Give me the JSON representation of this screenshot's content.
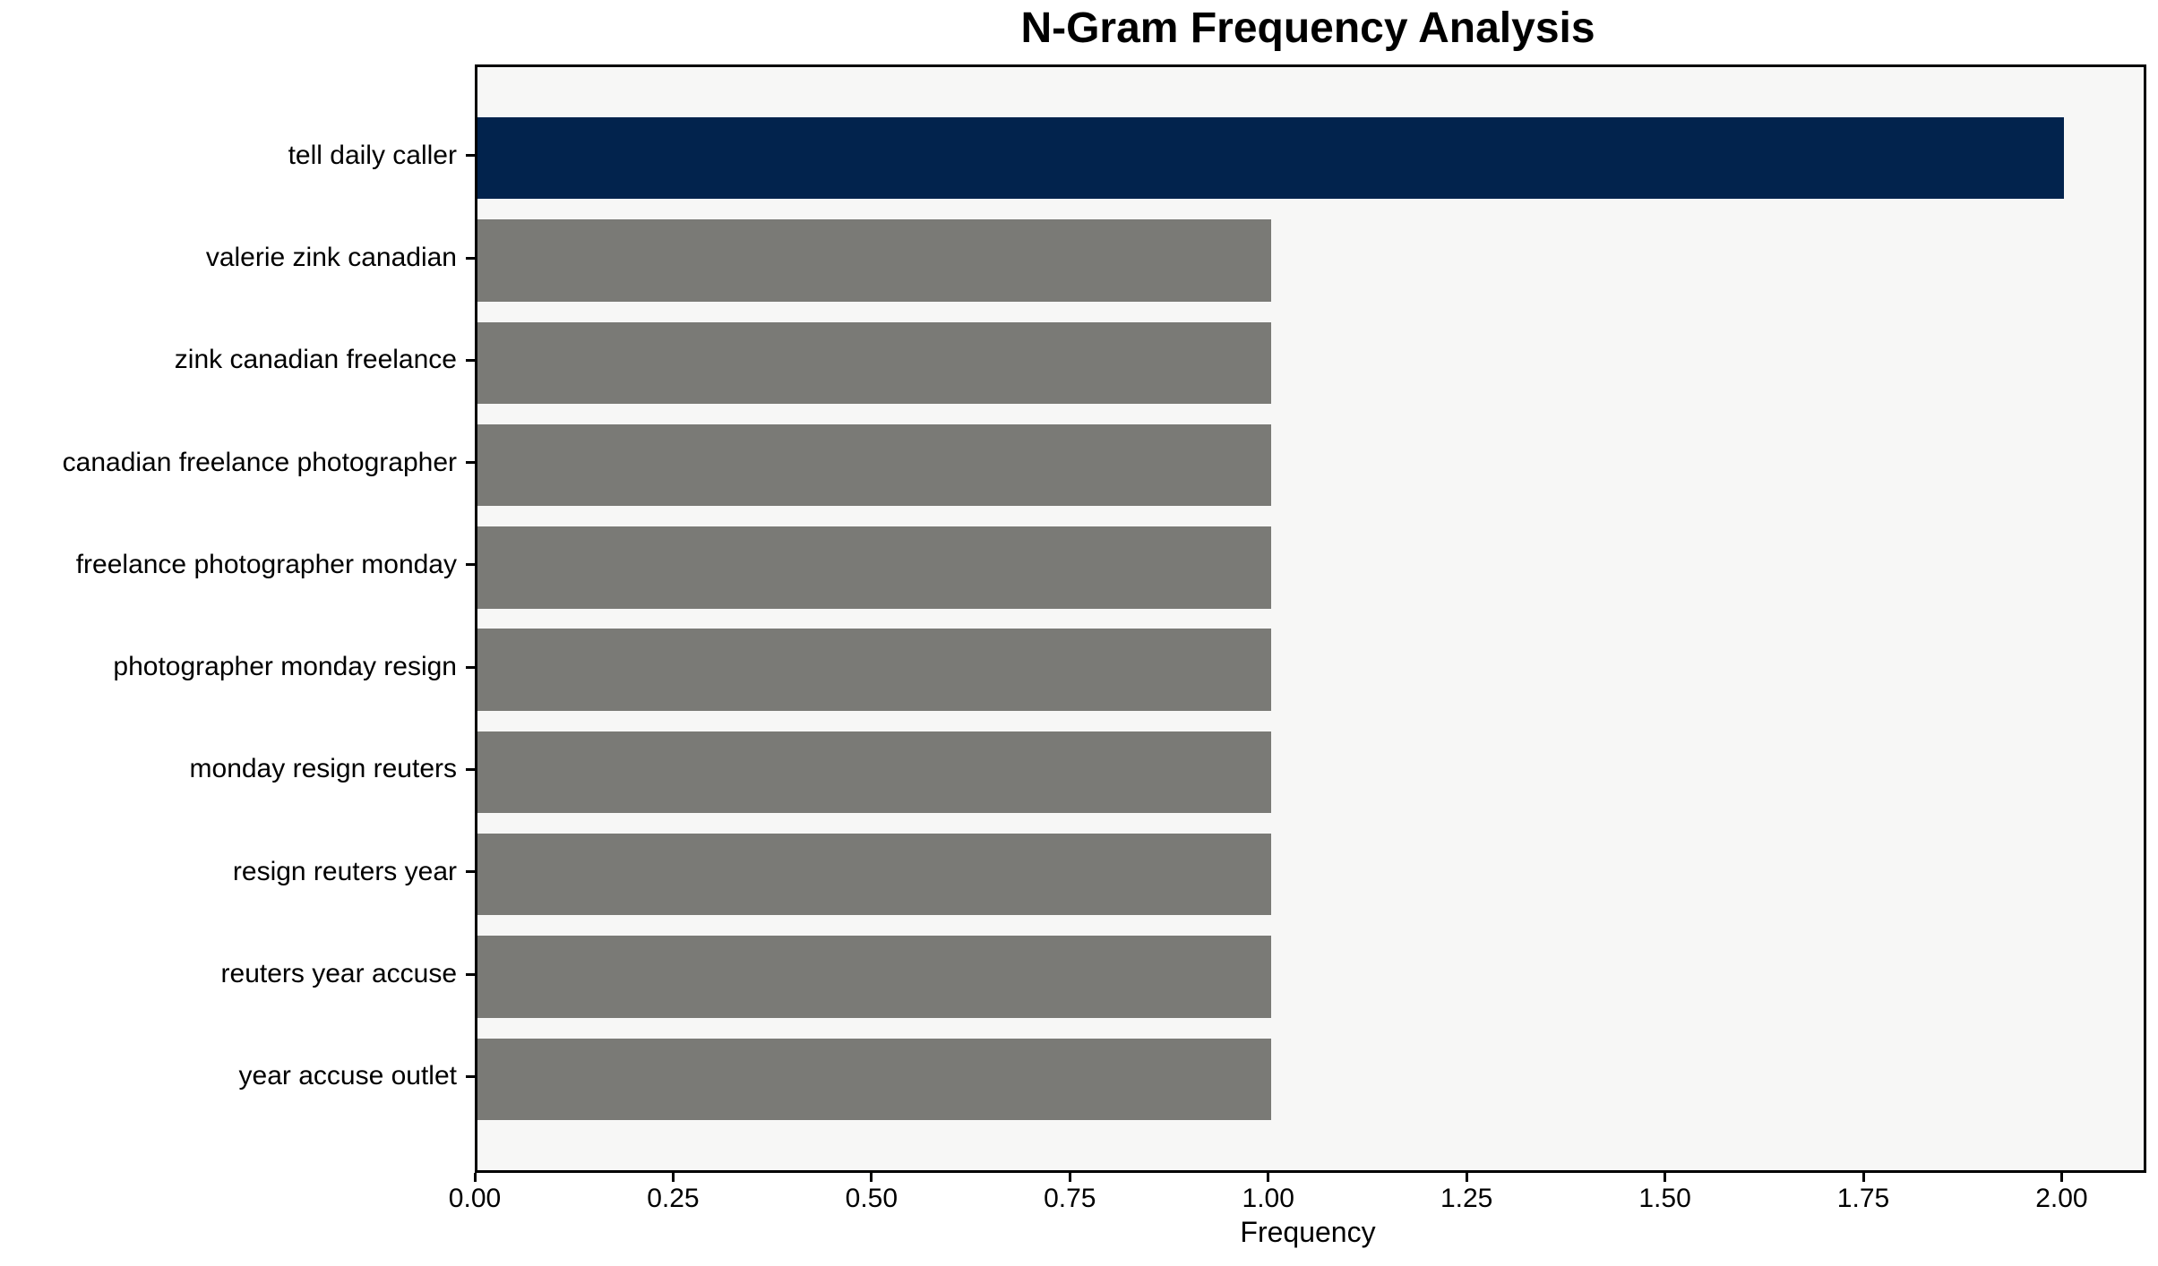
{
  "chart_data": {
    "type": "bar",
    "orientation": "horizontal",
    "title": "N-Gram Frequency Analysis",
    "xlabel": "Frequency",
    "ylabel": "",
    "categories": [
      "tell daily caller",
      "valerie zink canadian",
      "zink canadian freelance",
      "canadian freelance photographer",
      "freelance photographer monday",
      "photographer monday resign",
      "monday resign reuters",
      "resign reuters year",
      "reuters year accuse",
      "year accuse outlet"
    ],
    "values": [
      2,
      1,
      1,
      1,
      1,
      1,
      1,
      1,
      1,
      1
    ],
    "bar_colors": [
      "#02234d",
      "#7a7a76",
      "#7a7a76",
      "#7a7a76",
      "#7a7a76",
      "#7a7a76",
      "#7a7a76",
      "#7a7a76",
      "#7a7a76",
      "#7a7a76"
    ],
    "xlim": [
      0,
      2.1
    ],
    "xticks": [
      0,
      0.25,
      0.5,
      0.75,
      1,
      1.25,
      1.5,
      1.75,
      2
    ],
    "xtick_labels": [
      "0.00",
      "0.25",
      "0.50",
      "0.75",
      "1.00",
      "1.25",
      "1.50",
      "1.75",
      "2.00"
    ],
    "grid": false,
    "legend": false,
    "colors": {
      "highlight_bar": "#02234d",
      "default_bar": "#7a7a76",
      "plot_background": "#f7f7f6",
      "figure_background": "#ffffff",
      "spine": "#000000",
      "text": "#000000"
    }
  }
}
